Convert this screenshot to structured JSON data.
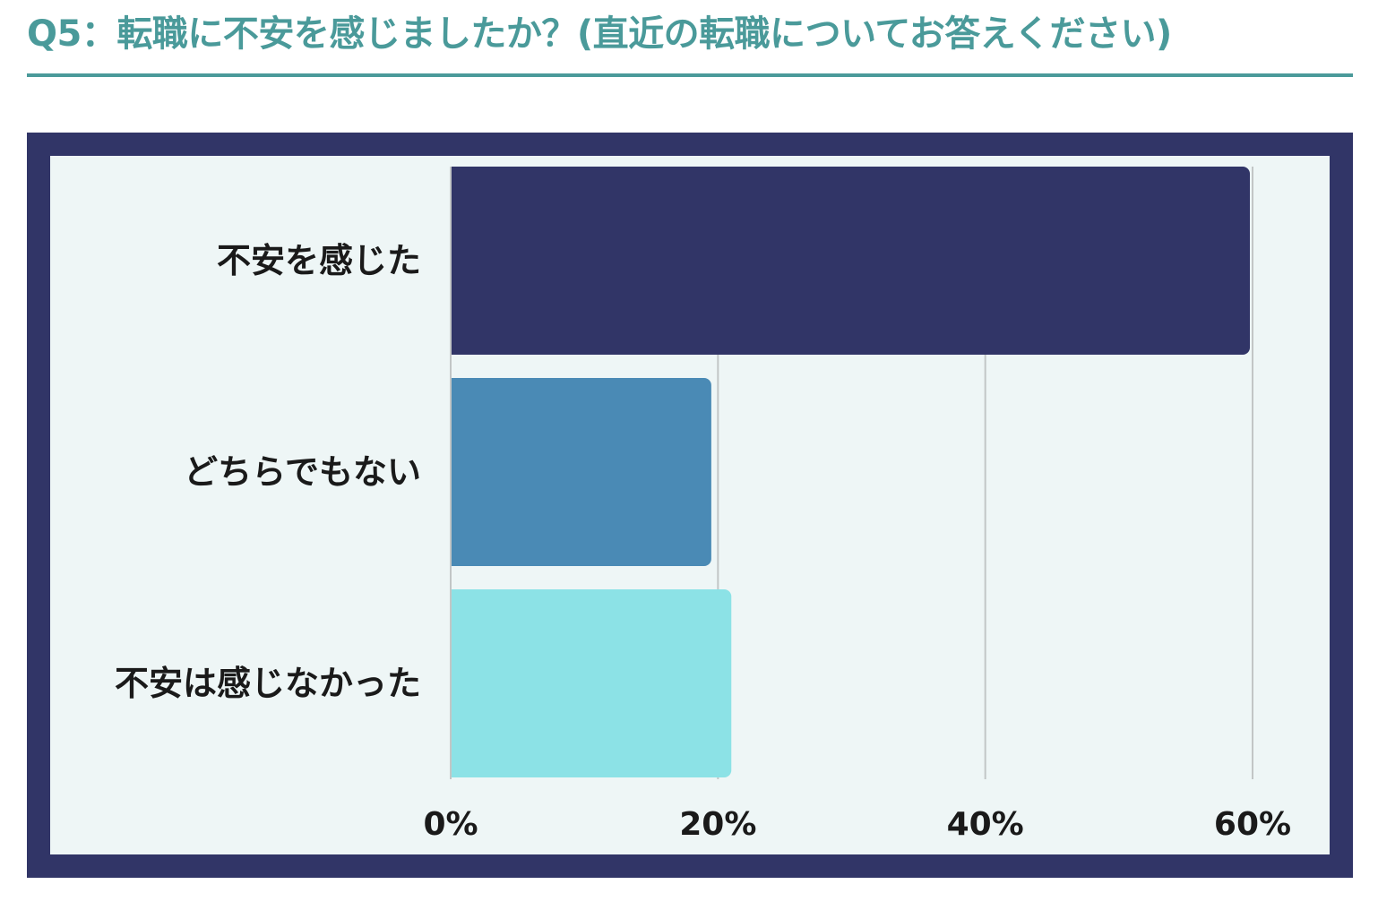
{
  "page": {
    "title": "Q5：転職に不安を感じましたか？(直近の転職についてお答えください)",
    "title_color": "#4a9a9a",
    "rule_color": "#4a9a9a",
    "frame_color": "#313567",
    "panel_color": "#eef6f6",
    "grid_color": "#c2c6c6",
    "text_color": "#1a1a1a"
  },
  "chart_data": {
    "type": "bar",
    "orientation": "horizontal",
    "title": "",
    "xlabel": "",
    "ylabel": "",
    "categories": [
      "不安を感じた",
      "どちらでもない",
      "不安は感じなかった"
    ],
    "values": [
      59.8,
      19.5,
      21.0
    ],
    "unit": "%",
    "colors": [
      "#313567",
      "#4a8ab5",
      "#8ce2e6"
    ],
    "xlim": [
      0,
      60
    ],
    "ticks": [
      "0%",
      "20%",
      "40%",
      "60%"
    ],
    "tick_values": [
      0,
      20,
      40,
      60
    ],
    "grid": true,
    "legend": "none"
  }
}
